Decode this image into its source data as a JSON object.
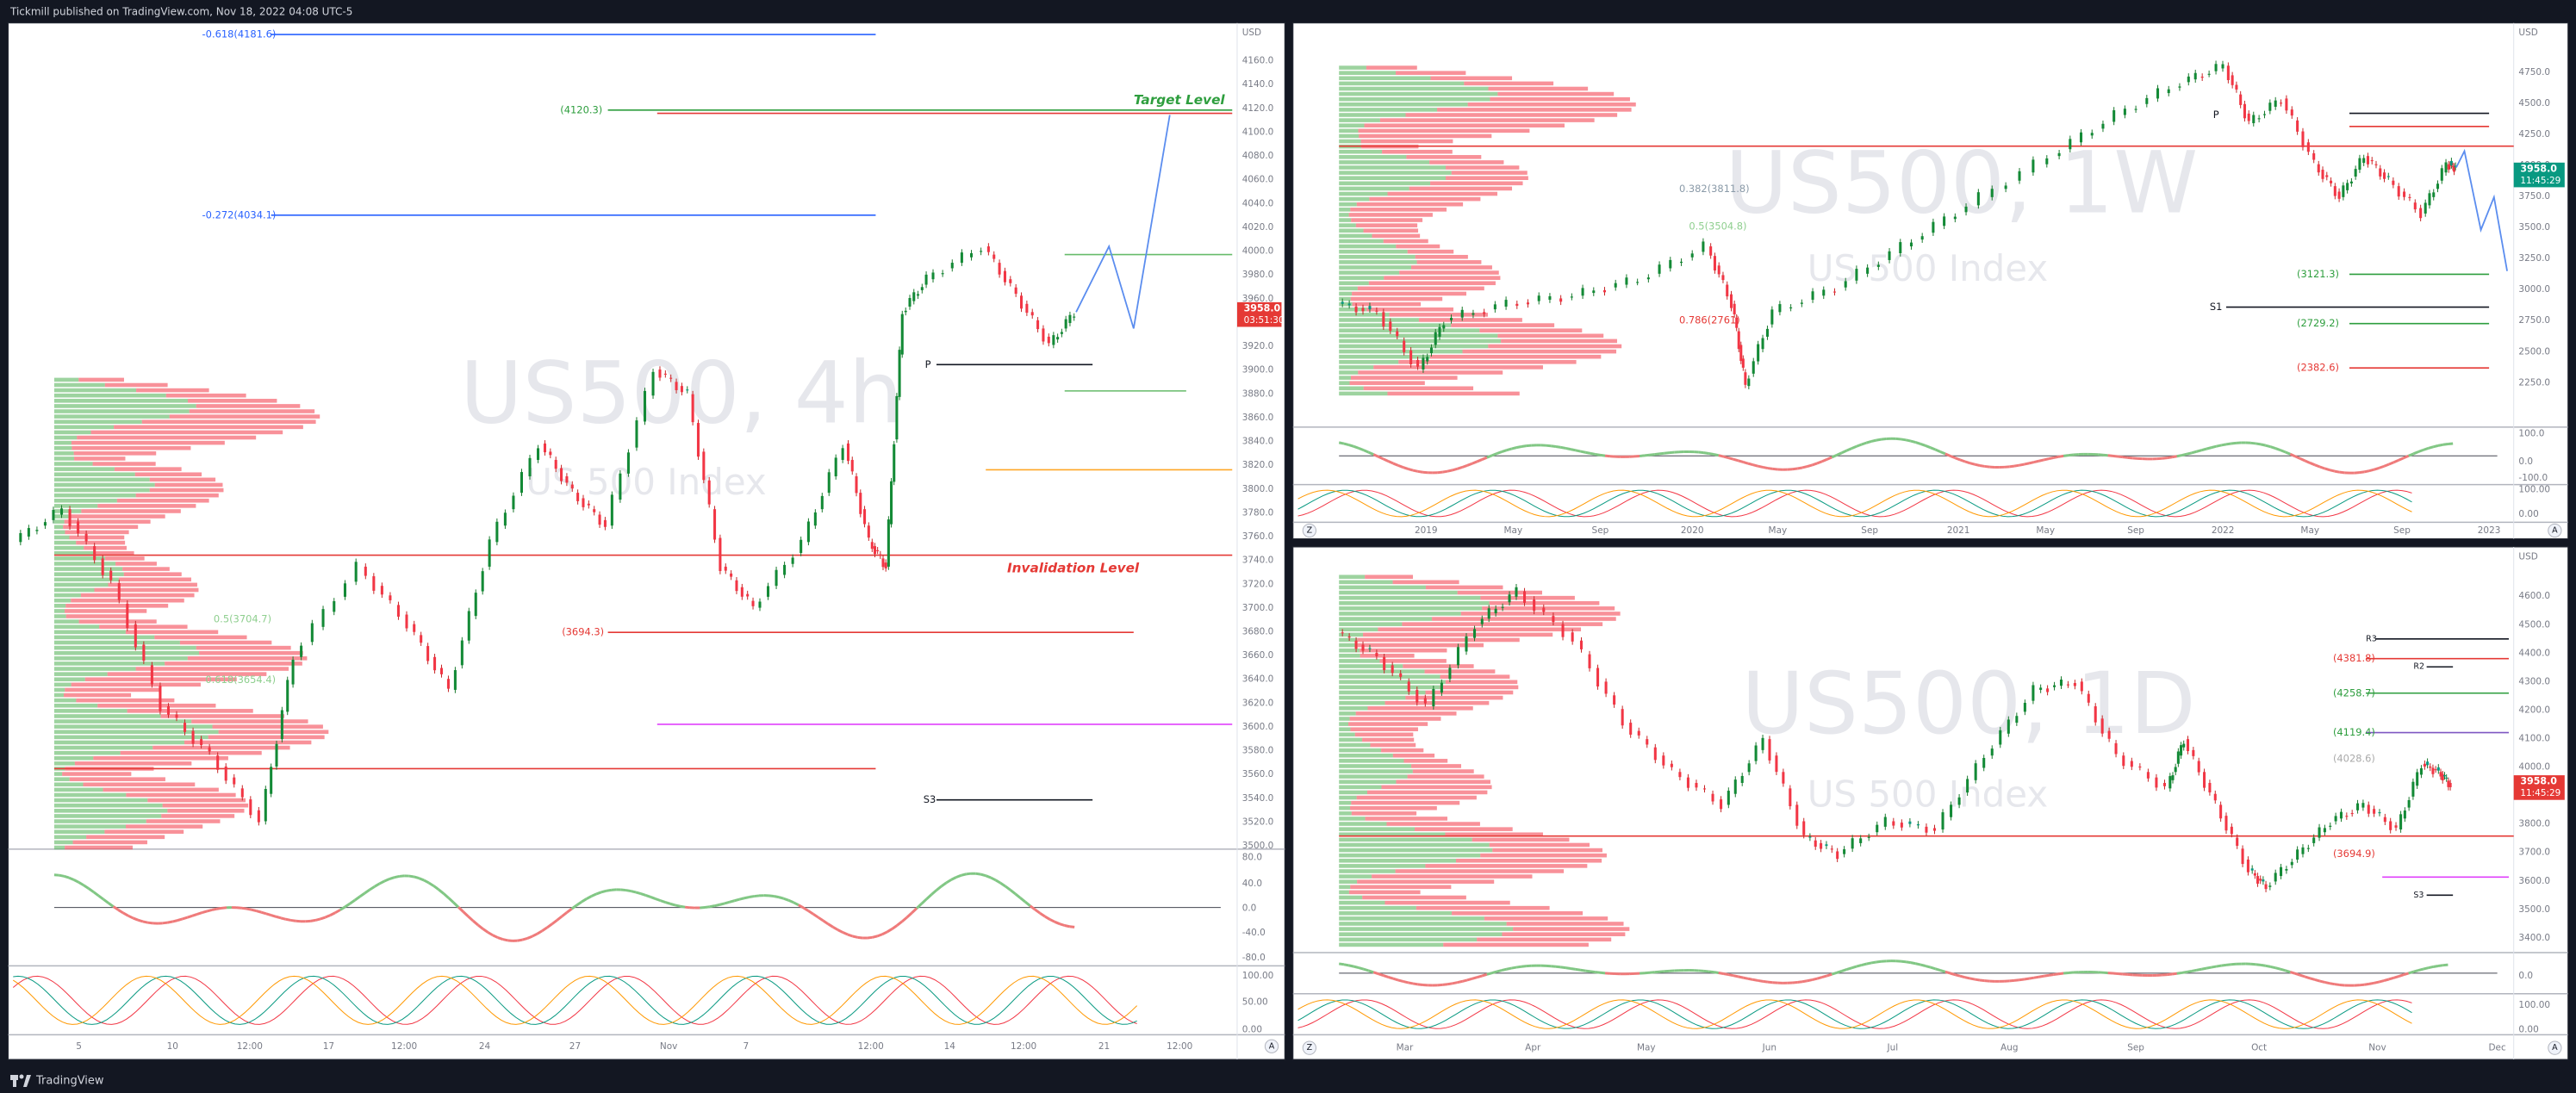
{
  "header": {
    "publisher": "Tickmill published on TradingView.com, Nov 18, 2022 04:08 UTC-5"
  },
  "footer": {
    "brand": "TradingView"
  },
  "panels": [
    {
      "watermark": "US500, 4h",
      "description": "US 500 Index",
      "currency": "USD",
      "price_axis": [
        "4160.0",
        "4140.0",
        "4120.0",
        "4100.0",
        "4080.0",
        "4060.0",
        "4040.0",
        "4020.0",
        "4000.0",
        "3980.0",
        "3960.0",
        "3940.0",
        "3920.0",
        "3900.0",
        "3880.0",
        "3860.0",
        "3840.0",
        "3820.0",
        "3800.0",
        "3780.0",
        "3760.0",
        "3740.0",
        "3720.0",
        "3700.0",
        "3680.0",
        "3660.0",
        "3640.0",
        "3620.0",
        "3600.0",
        "3580.0",
        "3560.0",
        "3540.0",
        "3520.0",
        "3500.0"
      ],
      "price_tag": "3958.0",
      "countdown": "03:51:30",
      "osc_axis": [
        "80.0",
        "40.0",
        "0.0",
        "-40.0",
        "-80.0"
      ],
      "stoch_axis": [
        "100.00",
        "50.00",
        "0.00"
      ],
      "time_axis": [
        "5",
        "10",
        "12:00",
        "17",
        "12:00",
        "24",
        "27",
        "Nov",
        "7",
        "12:00",
        "14",
        "12:00",
        "21",
        "12:00"
      ],
      "annotations": [
        "-0.618(4181.6)",
        "(4120.3)",
        "Target Level",
        "-0.272(4034.1)",
        "P",
        "Invalidation Level",
        "0.5(3704.7)",
        "(3694.3)",
        "0.618(3654.4)",
        "S3"
      ],
      "buttons": [
        "A"
      ]
    },
    {
      "watermark": "US500, 1W",
      "description": "US 500 Index",
      "currency": "USD",
      "price_axis": [
        "4750.0",
        "4500.0",
        "4250.0",
        "4000.0",
        "3750.0",
        "3500.0",
        "3250.0",
        "3000.0",
        "2750.0",
        "2500.0",
        "2250.0"
      ],
      "price_tag": "3958.0",
      "countdown": "11:45:29",
      "osc_axis": [
        "100.0",
        "0.0",
        "-100.0"
      ],
      "stoch_axis": [
        "100.00",
        "0.00"
      ],
      "time_axis": [
        "2019",
        "May",
        "Sep",
        "2020",
        "May",
        "Sep",
        "2021",
        "May",
        "Sep",
        "2022",
        "May",
        "Sep",
        "2023"
      ],
      "annotations": [
        "P",
        "0.382(3811.8)",
        "0.5(3504.8)",
        "(3121.3)",
        "S1",
        "(2729.2)",
        "0.786(2761)",
        "(2382.6)"
      ],
      "buttons": [
        "Z",
        "A"
      ]
    },
    {
      "watermark": "US500, 1D",
      "description": "US 500 Index",
      "currency": "USD",
      "price_axis": [
        "4600.0",
        "4500.0",
        "4400.0",
        "4300.0",
        "4200.0",
        "4100.0",
        "4000.0",
        "3900.0",
        "3800.0",
        "3700.0",
        "3600.0",
        "3500.0",
        "3400.0"
      ],
      "price_tag": "3958.0",
      "countdown": "11:45:29",
      "osc_axis": [
        "0.0"
      ],
      "stoch_axis": [
        "100.00",
        "0.00"
      ],
      "time_axis": [
        "Mar",
        "Apr",
        "May",
        "Jun",
        "Jul",
        "Aug",
        "Sep",
        "Oct",
        "Nov",
        "Dec"
      ],
      "annotations": [
        "R3",
        "(4381.8)",
        "R2",
        "(4258.7)",
        "(4119.4)",
        "(4028.6)",
        "(3694.9)",
        "S3"
      ],
      "buttons": [
        "Z",
        "A"
      ]
    }
  ]
}
